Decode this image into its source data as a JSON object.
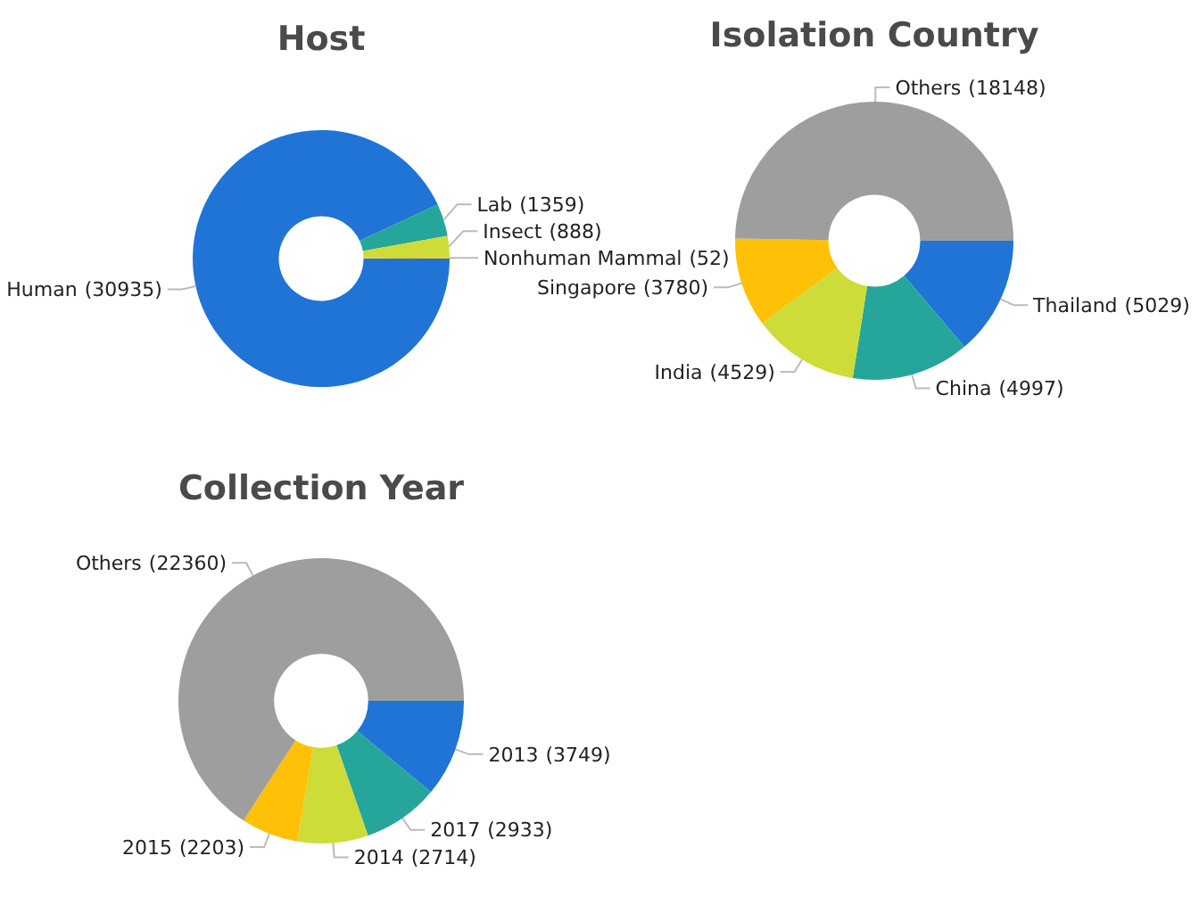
{
  "chart_data": [
    {
      "type": "donut",
      "title": "Host",
      "categories": [
        "Human",
        "Lab",
        "Insect",
        "Nonhuman Mammal"
      ],
      "values": [
        30935,
        1359,
        888,
        52
      ],
      "value_labels": [
        "(30935)",
        "(1359)",
        "(888)",
        "(52)"
      ],
      "colors": [
        "#1f74d6",
        "#26a69a",
        "#cddc39",
        "#ffc107"
      ]
    },
    {
      "type": "donut",
      "title": "Isolation Country",
      "categories": [
        "Thailand",
        "China",
        "India",
        "Singapore",
        "Others"
      ],
      "values": [
        5029,
        4997,
        4529,
        3780,
        18148
      ],
      "value_labels": [
        "(5029)",
        "(4997)",
        "(4529)",
        "(3780)",
        "(18148)"
      ],
      "colors": [
        "#1f74d6",
        "#26a69a",
        "#cddc39",
        "#ffc107",
        "#9e9e9e"
      ]
    },
    {
      "type": "donut",
      "title": "Collection Year",
      "categories": [
        "2013",
        "2017",
        "2014",
        "2015",
        "Others"
      ],
      "values": [
        3749,
        2933,
        2714,
        2203,
        22360
      ],
      "value_labels": [
        "(3749)",
        "(2933)",
        "(2714)",
        "(2203)",
        "(22360)"
      ],
      "colors": [
        "#1f74d6",
        "#26a69a",
        "#cddc39",
        "#ffc107",
        "#9e9e9e"
      ]
    }
  ]
}
